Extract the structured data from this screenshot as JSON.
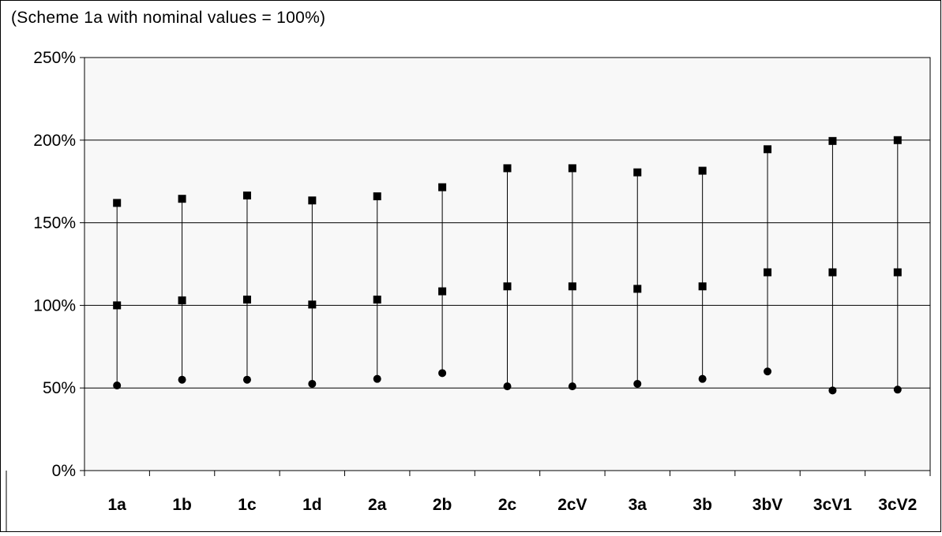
{
  "chart_data": {
    "type": "scatter",
    "subtitle": "(Scheme 1a with nominal values = 100%)",
    "categories": [
      "1a",
      "1b",
      "1c",
      "1d",
      "2a",
      "2b",
      "2c",
      "2cV",
      "3a",
      "3b",
      "3bV",
      "3cV1",
      "3cV2"
    ],
    "series": [
      {
        "marker": "square",
        "values": [
          162,
          164.5,
          166.5,
          163.5,
          166,
          171.5,
          183,
          183,
          180.5,
          181.5,
          194.5,
          199.5,
          200
        ]
      },
      {
        "marker": "square",
        "values": [
          100,
          103,
          103.5,
          100.5,
          103.5,
          108.5,
          111.5,
          111.5,
          110,
          111.5,
          120,
          120,
          120
        ]
      },
      {
        "marker": "circle",
        "values": [
          51.5,
          55,
          55,
          52.5,
          55.5,
          59,
          51,
          51,
          52.5,
          55.5,
          60,
          48.5,
          49
        ]
      }
    ],
    "ylim": [
      0,
      250
    ],
    "yticks": [
      0,
      50,
      100,
      150,
      200,
      250
    ],
    "ytick_labels": [
      "0%",
      "50%",
      "100%",
      "150%",
      "200%",
      "250%"
    ],
    "grid": true,
    "plot_background": "#f8f8f8",
    "marker_color": "#000000",
    "range_line": "vertical line from lowest to highest value in each category"
  }
}
